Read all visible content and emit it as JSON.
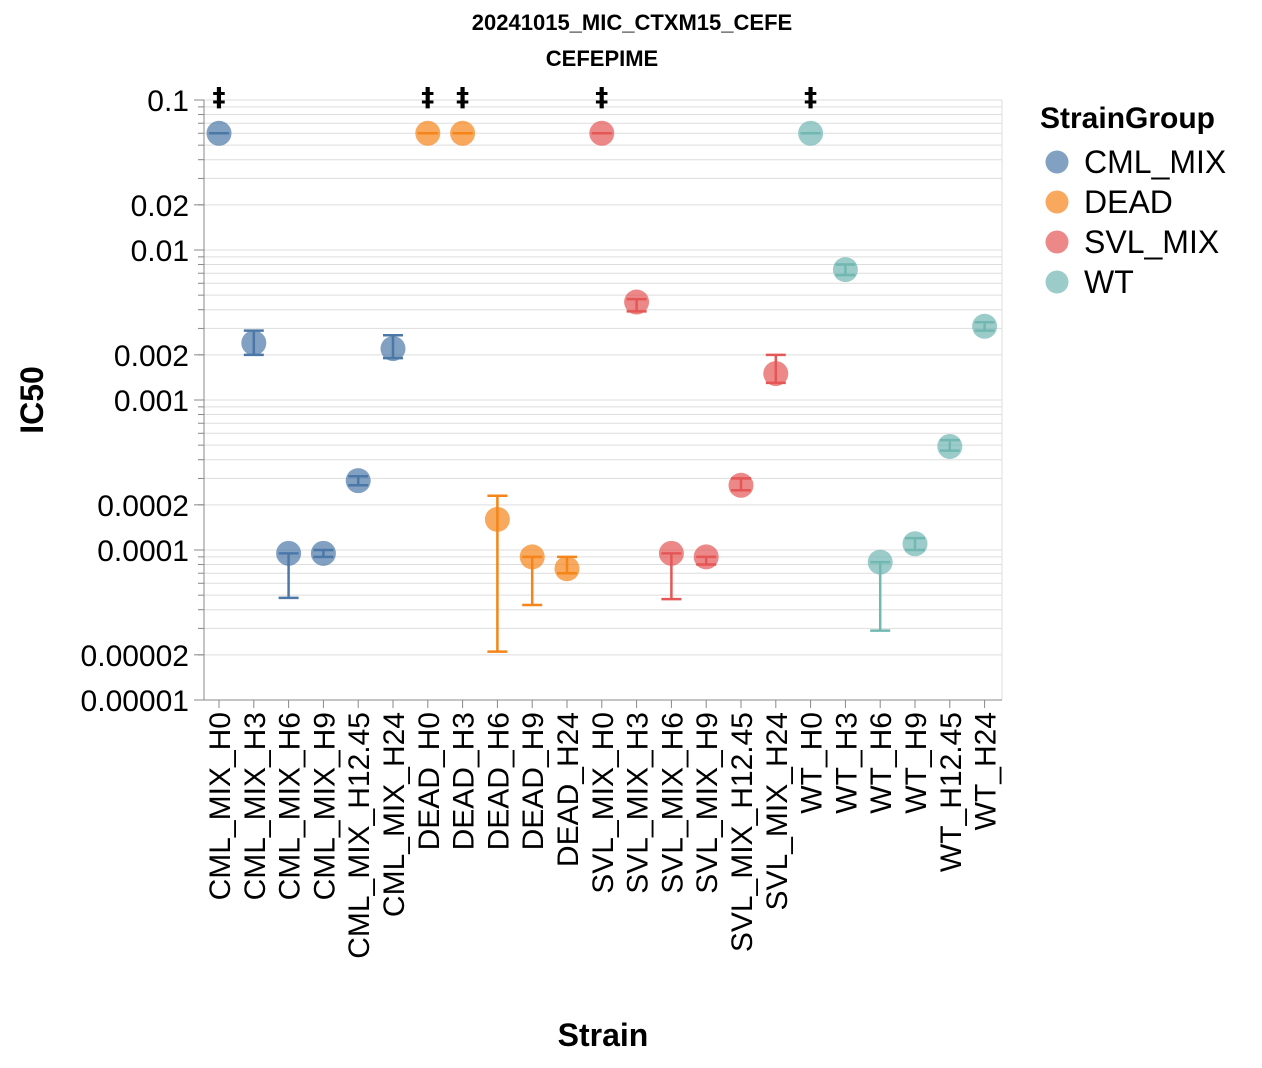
{
  "chart_data": {
    "type": "scatter",
    "title": "20241015_MIC_CTXM15_CEFE",
    "subtitle": "CEFEPIME",
    "xlabel": "Strain",
    "ylabel": "IC50",
    "y_scale": "log",
    "ylim": [
      1e-05,
      0.1
    ],
    "y_ticks": [
      "0.00001",
      "0.00002",
      "0.0001",
      "0.0002",
      "0.001",
      "0.002",
      "0.01",
      "0.02",
      "0.1"
    ],
    "grid": true,
    "legend": {
      "title": "StrainGroup",
      "placement": "top-right",
      "items": [
        {
          "name": "CML_MIX",
          "color": "#4c78a8"
        },
        {
          "name": "DEAD",
          "color": "#f58518"
        },
        {
          "name": "SVL_MIX",
          "color": "#e45756"
        },
        {
          "name": "WT",
          "color": "#72b7b2"
        }
      ]
    },
    "categories": [
      "CML_MIX_H0",
      "CML_MIX_H3",
      "CML_MIX_H6",
      "CML_MIX_H9",
      "CML_MIX_H12.45",
      "CML_MIX_H24",
      "DEAD_H0",
      "DEAD_H3",
      "DEAD_H6",
      "DEAD_H9",
      "DEAD_H24",
      "SVL_MIX_H0",
      "SVL_MIX_H3",
      "SVL_MIX_H6",
      "SVL_MIX_H9",
      "SVL_MIX_H12.45",
      "SVL_MIX_H24",
      "WT_H0",
      "WT_H3",
      "WT_H6",
      "WT_H9",
      "WT_H12.45",
      "WT_H24"
    ],
    "points": [
      {
        "strain": "CML_MIX_H0",
        "group": "CML_MIX",
        "ic50": 0.06,
        "lo": 0.06,
        "hi": 0.06,
        "annotation": "‡"
      },
      {
        "strain": "CML_MIX_H3",
        "group": "CML_MIX",
        "ic50": 0.0024,
        "lo": 0.002,
        "hi": 0.0029,
        "annotation": ""
      },
      {
        "strain": "CML_MIX_H6",
        "group": "CML_MIX",
        "ic50": 9.5e-05,
        "lo": 4.8e-05,
        "hi": 9.5e-05,
        "annotation": ""
      },
      {
        "strain": "CML_MIX_H9",
        "group": "CML_MIX",
        "ic50": 9.5e-05,
        "lo": 9e-05,
        "hi": 0.0001,
        "annotation": ""
      },
      {
        "strain": "CML_MIX_H12.45",
        "group": "CML_MIX",
        "ic50": 0.00029,
        "lo": 0.00027,
        "hi": 0.00031,
        "annotation": ""
      },
      {
        "strain": "CML_MIX_H24",
        "group": "CML_MIX",
        "ic50": 0.0022,
        "lo": 0.0019,
        "hi": 0.0027,
        "annotation": ""
      },
      {
        "strain": "DEAD_H0",
        "group": "DEAD",
        "ic50": 0.06,
        "lo": 0.06,
        "hi": 0.06,
        "annotation": "‡"
      },
      {
        "strain": "DEAD_H3",
        "group": "DEAD",
        "ic50": 0.06,
        "lo": 0.06,
        "hi": 0.06,
        "annotation": "‡"
      },
      {
        "strain": "DEAD_H6",
        "group": "DEAD",
        "ic50": 0.00016,
        "lo": 2.1e-05,
        "hi": 0.00023,
        "annotation": ""
      },
      {
        "strain": "DEAD_H9",
        "group": "DEAD",
        "ic50": 9e-05,
        "lo": 4.3e-05,
        "hi": 9e-05,
        "annotation": ""
      },
      {
        "strain": "DEAD_H24",
        "group": "DEAD",
        "ic50": 7.5e-05,
        "lo": 7e-05,
        "hi": 9e-05,
        "annotation": ""
      },
      {
        "strain": "SVL_MIX_H0",
        "group": "SVL_MIX",
        "ic50": 0.06,
        "lo": 0.06,
        "hi": 0.06,
        "annotation": "‡"
      },
      {
        "strain": "SVL_MIX_H3",
        "group": "SVL_MIX",
        "ic50": 0.0045,
        "lo": 0.0039,
        "hi": 0.0047,
        "annotation": ""
      },
      {
        "strain": "SVL_MIX_H6",
        "group": "SVL_MIX",
        "ic50": 9.5e-05,
        "lo": 4.7e-05,
        "hi": 9.5e-05,
        "annotation": ""
      },
      {
        "strain": "SVL_MIX_H9",
        "group": "SVL_MIX",
        "ic50": 9e-05,
        "lo": 8e-05,
        "hi": 9e-05,
        "annotation": ""
      },
      {
        "strain": "SVL_MIX_H12.45",
        "group": "SVL_MIX",
        "ic50": 0.00027,
        "lo": 0.00025,
        "hi": 0.0003,
        "annotation": ""
      },
      {
        "strain": "SVL_MIX_H24",
        "group": "SVL_MIX",
        "ic50": 0.0015,
        "lo": 0.0013,
        "hi": 0.002,
        "annotation": ""
      },
      {
        "strain": "WT_H0",
        "group": "WT",
        "ic50": 0.06,
        "lo": 0.06,
        "hi": 0.06,
        "annotation": "‡"
      },
      {
        "strain": "WT_H3",
        "group": "WT",
        "ic50": 0.0074,
        "lo": 0.0068,
        "hi": 0.008,
        "annotation": ""
      },
      {
        "strain": "WT_H6",
        "group": "WT",
        "ic50": 8.3e-05,
        "lo": 2.9e-05,
        "hi": 8.3e-05,
        "annotation": ""
      },
      {
        "strain": "WT_H9",
        "group": "WT",
        "ic50": 0.00011,
        "lo": 0.0001,
        "hi": 0.00012,
        "annotation": ""
      },
      {
        "strain": "WT_H12.45",
        "group": "WT",
        "ic50": 0.00049,
        "lo": 0.00046,
        "hi": 0.00054,
        "annotation": ""
      },
      {
        "strain": "WT_H24",
        "group": "WT",
        "ic50": 0.0031,
        "lo": 0.0029,
        "hi": 0.0033,
        "annotation": ""
      }
    ]
  }
}
